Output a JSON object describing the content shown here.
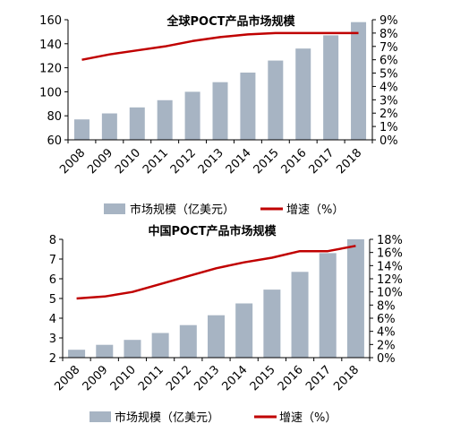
{
  "colors": {
    "bar": "#a7b4c3",
    "line": "#c00000",
    "axis": "#000000"
  },
  "chart_data": [
    {
      "type": "bar+line",
      "title": "全球POCT产品市场规模",
      "categories": [
        "2008",
        "2009",
        "2010",
        "2011",
        "2012",
        "2013",
        "2014",
        "2015",
        "2016",
        "2017",
        "2018"
      ],
      "series": [
        {
          "name": "市场规模（亿美元）",
          "type": "bar",
          "axis": "left",
          "values": [
            77,
            82,
            87,
            93,
            100,
            108,
            116,
            126,
            136,
            147,
            158
          ]
        },
        {
          "name": "增速（%）",
          "type": "line",
          "axis": "right",
          "values": [
            6.0,
            6.4,
            6.7,
            7.0,
            7.4,
            7.7,
            7.9,
            8.0,
            8.0,
            8.0,
            8.0
          ]
        }
      ],
      "y_left": {
        "min": 60,
        "max": 160,
        "ticks": [
          "60",
          "80",
          "100",
          "120",
          "140",
          "160"
        ]
      },
      "y_right": {
        "min": 0,
        "max": 9,
        "ticks": [
          "0%",
          "1%",
          "2%",
          "3%",
          "4%",
          "5%",
          "6%",
          "7%",
          "8%",
          "9%"
        ]
      }
    },
    {
      "type": "bar+line",
      "title": "中国POCT产品市场规模",
      "categories": [
        "2008",
        "2009",
        "2010",
        "2011",
        "2012",
        "2013",
        "2014",
        "2015",
        "2016",
        "2017",
        "2018"
      ],
      "series": [
        {
          "name": "市场规模（亿美元）",
          "type": "bar",
          "axis": "left",
          "values": [
            2.4,
            2.65,
            2.9,
            3.25,
            3.65,
            4.15,
            4.75,
            5.45,
            6.35,
            7.3,
            8.0
          ]
        },
        {
          "name": "增速（%）",
          "type": "line",
          "axis": "right",
          "values": [
            9.0,
            9.3,
            10.0,
            11.2,
            12.4,
            13.6,
            14.5,
            15.2,
            16.2,
            16.2,
            17.0
          ]
        }
      ],
      "y_left": {
        "min": 2,
        "max": 8,
        "ticks": [
          "2",
          "3",
          "4",
          "5",
          "6",
          "7",
          "8"
        ]
      },
      "y_right": {
        "min": 0,
        "max": 18,
        "ticks": [
          "0%",
          "2%",
          "4%",
          "6%",
          "8%",
          "10%",
          "12%",
          "14%",
          "16%",
          "18%"
        ]
      }
    }
  ]
}
